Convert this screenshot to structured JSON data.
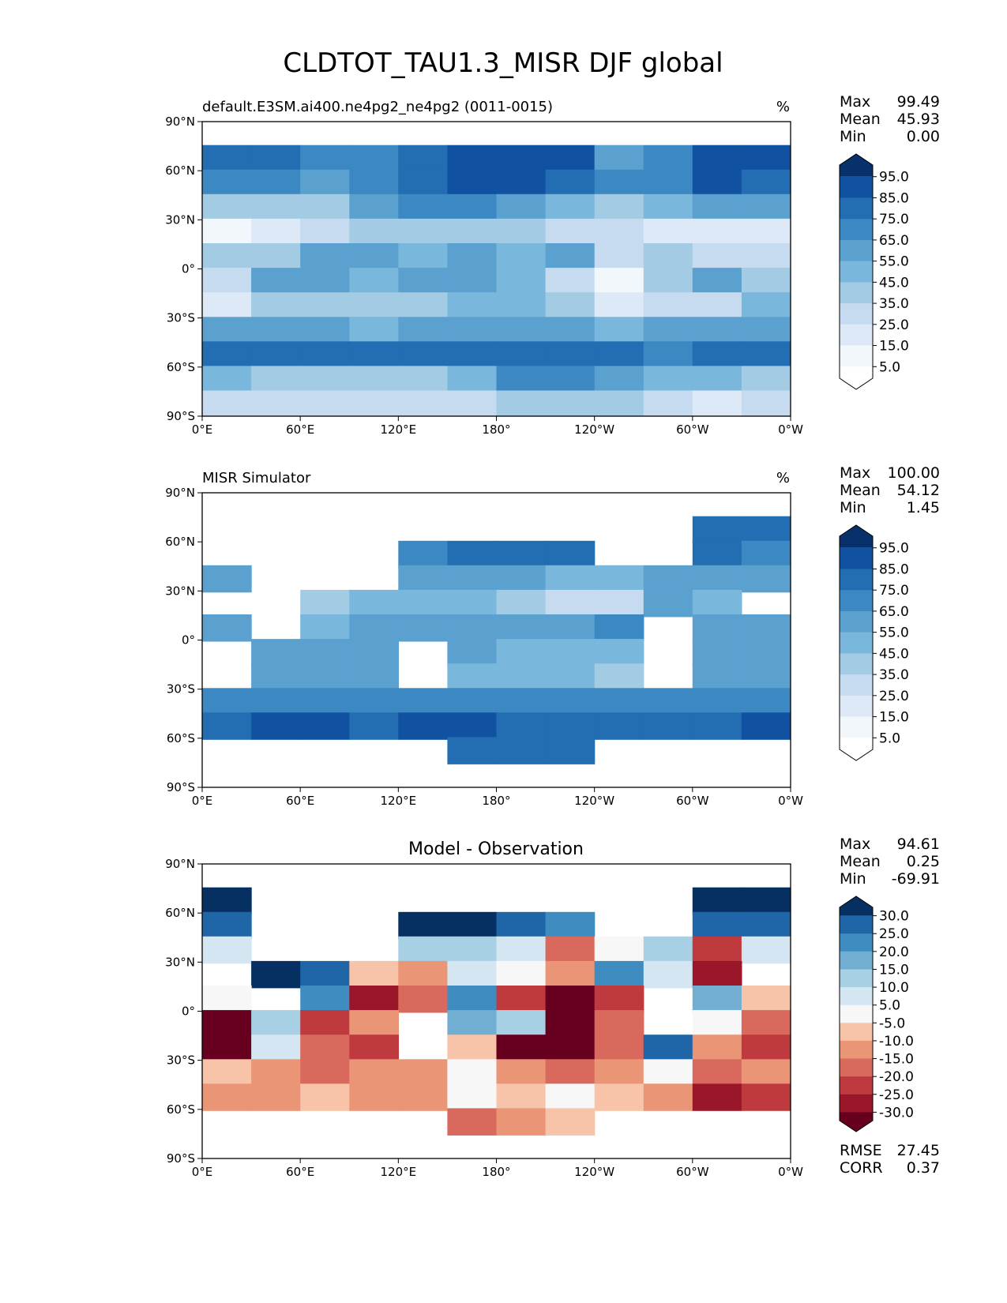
{
  "figure": {
    "title": "CLDTOT_TAU1.3_MISR DJF global"
  },
  "axes": {
    "lat_ticks": [
      "90°N",
      "60°N",
      "30°N",
      "0°",
      "30°S",
      "60°S",
      "90°S"
    ],
    "lon_ticks": [
      "0°E",
      "60°E",
      "120°E",
      "180°",
      "120°W",
      "60°W",
      "0°W"
    ]
  },
  "colors": {
    "seq": [
      "#ffffff",
      "#f2f7fc",
      "#dde9f6",
      "#c6dbef",
      "#a3cbe3",
      "#7ab7dc",
      "#5aa1d0",
      "#3c88c2",
      "#236db2",
      "#1052a1",
      "#08306b"
    ],
    "div": [
      "#67001f",
      "#9a1629",
      "#be3a3f",
      "#d8695c",
      "#eb9577",
      "#f7c4a9",
      "#f7f7f7",
      "#d3e6f1",
      "#a7d0e4",
      "#72aed2",
      "#3f8dc0",
      "#1e66a8",
      "#053061"
    ]
  },
  "chart_data": [
    {
      "type": "heatmap",
      "panel": "model",
      "title": "default.E3SM.ai400.ne4pg2_ne4pg2 (0011-0015)",
      "units": "%",
      "stats": {
        "Max": "99.49",
        "Mean": "45.93",
        "Min": "0.00"
      },
      "colorbar_ticks": [
        "95.0",
        "85.0",
        "75.0",
        "65.0",
        "55.0",
        "45.0",
        "35.0",
        "25.0",
        "15.0",
        "5.0"
      ],
      "levels": [
        0,
        5,
        15,
        25,
        35,
        45,
        55,
        65,
        75,
        85,
        95,
        100
      ],
      "lat": [
        67.5,
        52.5,
        37.5,
        22.5,
        7.5,
        -7.5,
        -22.5,
        -37.5,
        -52.5,
        -67.5,
        -82.5
      ],
      "lon": [
        15,
        45,
        75,
        105,
        135,
        165,
        195,
        225,
        255,
        285,
        315,
        345
      ],
      "values": [
        [
          80,
          78,
          72,
          70,
          75,
          86,
          88,
          85,
          62,
          65,
          92,
          88
        ],
        [
          74,
          72,
          62,
          70,
          80,
          92,
          90,
          80,
          65,
          68,
          90,
          84
        ],
        [
          38,
          35,
          40,
          58,
          72,
          70,
          60,
          50,
          40,
          45,
          62,
          55
        ],
        [
          12,
          15,
          30,
          35,
          42,
          40,
          35,
          30,
          25,
          22,
          20,
          15
        ],
        [
          40,
          40,
          55,
          58,
          52,
          55,
          50,
          55,
          30,
          35,
          30,
          28
        ],
        [
          25,
          55,
          60,
          50,
          60,
          55,
          45,
          28,
          12,
          35,
          60,
          40
        ],
        [
          20,
          35,
          42,
          40,
          35,
          45,
          48,
          35,
          22,
          25,
          30,
          45
        ],
        [
          62,
          60,
          55,
          50,
          55,
          62,
          60,
          58,
          45,
          55,
          60,
          62
        ],
        [
          78,
          80,
          82,
          80,
          82,
          78,
          80,
          82,
          75,
          70,
          75,
          80
        ],
        [
          48,
          42,
          40,
          38,
          42,
          45,
          70,
          72,
          60,
          50,
          45,
          42
        ],
        [
          30,
          30,
          28,
          30,
          32,
          30,
          35,
          38,
          35,
          25,
          22,
          28
        ]
      ]
    },
    {
      "type": "heatmap",
      "panel": "observation",
      "title": "MISR Simulator",
      "units": "%",
      "stats": {
        "Max": "100.00",
        "Mean": "54.12",
        "Min": "1.45"
      },
      "colorbar_ticks": [
        "95.0",
        "85.0",
        "75.0",
        "65.0",
        "55.0",
        "45.0",
        "35.0",
        "25.0",
        "15.0",
        "5.0"
      ],
      "levels": [
        0,
        5,
        15,
        25,
        35,
        45,
        55,
        65,
        75,
        85,
        95,
        100
      ],
      "lat": [
        67.5,
        52.5,
        37.5,
        22.5,
        7.5,
        -7.5,
        -22.5,
        -37.5,
        -52.5,
        -67.5,
        -82.5
      ],
      "lon": [
        15,
        45,
        75,
        105,
        135,
        165,
        195,
        225,
        255,
        285,
        315,
        345
      ],
      "values": [
        [
          null,
          null,
          null,
          null,
          null,
          null,
          null,
          null,
          null,
          null,
          80,
          78
        ],
        [
          null,
          null,
          null,
          null,
          72,
          75,
          80,
          78,
          null,
          null,
          78,
          72
        ],
        [
          58,
          null,
          null,
          null,
          62,
          62,
          58,
          50,
          45,
          62,
          58,
          55
        ],
        [
          null,
          null,
          40,
          45,
          52,
          45,
          40,
          30,
          32,
          55,
          45,
          null
        ],
        [
          55,
          null,
          48,
          60,
          62,
          55,
          58,
          62,
          68,
          null,
          62,
          55
        ],
        [
          null,
          58,
          55,
          62,
          null,
          58,
          50,
          45,
          50,
          null,
          55,
          60
        ],
        [
          null,
          55,
          60,
          55,
          null,
          52,
          48,
          45,
          42,
          null,
          55,
          60
        ],
        [
          65,
          70,
          72,
          68,
          70,
          70,
          72,
          72,
          72,
          65,
          68,
          70
        ],
        [
          82,
          85,
          85,
          82,
          85,
          85,
          82,
          82,
          82,
          78,
          82,
          85
        ],
        [
          null,
          null,
          null,
          null,
          null,
          82,
          82,
          80,
          null,
          null,
          null,
          null
        ],
        [
          null,
          null,
          null,
          null,
          null,
          null,
          null,
          null,
          null,
          null,
          null,
          null
        ]
      ]
    },
    {
      "type": "heatmap",
      "panel": "difference",
      "title": "Model - Observation",
      "units": "",
      "stats": {
        "Max": "94.61",
        "Mean": "0.25",
        "Min": "-69.91"
      },
      "colorbar_ticks": [
        "30.0",
        "25.0",
        "20.0",
        "15.0",
        "10.0",
        "5.0",
        "-5.0",
        "-10.0",
        "-15.0",
        "-20.0",
        "-25.0",
        "-30.0"
      ],
      "levels": [
        -100,
        -30,
        -25,
        -20,
        -15,
        -10,
        -5,
        5,
        10,
        15,
        20,
        25,
        30,
        100
      ],
      "lat": [
        67.5,
        52.5,
        37.5,
        22.5,
        7.5,
        -7.5,
        -22.5,
        -37.5,
        -52.5,
        -67.5,
        -82.5
      ],
      "lon": [
        15,
        45,
        75,
        105,
        135,
        165,
        195,
        225,
        255,
        285,
        315,
        345
      ],
      "values": [
        [
          35,
          null,
          null,
          null,
          null,
          null,
          null,
          null,
          null,
          null,
          32,
          35
        ],
        [
          28,
          null,
          null,
          null,
          32,
          30,
          25,
          20,
          null,
          null,
          25,
          28
        ],
        [
          8,
          null,
          null,
          null,
          12,
          10,
          5,
          -20,
          -5,
          10,
          -25,
          5
        ],
        [
          null,
          30,
          25,
          -10,
          -15,
          5,
          -5,
          -15,
          20,
          5,
          -30,
          null
        ],
        [
          -5,
          null,
          20,
          -30,
          -20,
          20,
          -25,
          -35,
          -25,
          null,
          15,
          -10
        ],
        [
          -35,
          10,
          -25,
          -15,
          null,
          15,
          10,
          -35,
          -20,
          null,
          -5,
          -20
        ],
        [
          -35,
          5,
          -20,
          -25,
          null,
          -10,
          -35,
          -35,
          -20,
          25,
          -15,
          -25
        ],
        [
          -10,
          -15,
          -20,
          -15,
          -15,
          -5,
          -15,
          -20,
          -15,
          -5,
          -20,
          -15
        ],
        [
          -15,
          -12,
          -10,
          -12,
          -12,
          -5,
          -10,
          -5,
          -8,
          -15,
          -30,
          -25
        ],
        [
          null,
          null,
          null,
          null,
          null,
          -20,
          -15,
          -10,
          null,
          null,
          null,
          null
        ],
        [
          null,
          null,
          null,
          null,
          null,
          null,
          null,
          null,
          null,
          null,
          null,
          null
        ]
      ],
      "metrics": {
        "RMSE": "27.45",
        "CORR": "0.37"
      }
    }
  ]
}
